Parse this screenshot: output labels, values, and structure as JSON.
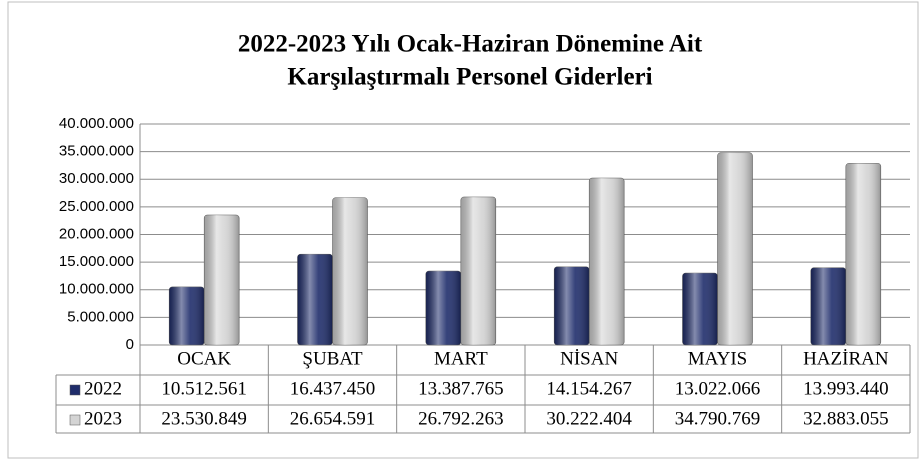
{
  "chart_data": {
    "type": "bar",
    "title": "2022-2023 Yılı Ocak-Haziran Dönemine Ait",
    "subtitle": "Karşılaştırmalı Personel Giderleri",
    "categories": [
      "OCAK",
      "ŞUBAT",
      "MART",
      "NİSAN",
      "MAYIS",
      "HAZİRAN"
    ],
    "series": [
      {
        "name": "2022",
        "color": "#1f2d6b",
        "values": [
          10512561,
          16437450,
          13387765,
          14154267,
          13022066,
          13993440
        ],
        "value_labels": [
          "10.512.561",
          "16.437.450",
          "13.387.765",
          "14.154.267",
          "13.022.066",
          "13.993.440"
        ]
      },
      {
        "name": "2023",
        "color": "#d4d4d4",
        "values": [
          23530849,
          26654591,
          26792263,
          30222404,
          34790769,
          32883055
        ],
        "value_labels": [
          "23.530.849",
          "26.654.591",
          "26.792.263",
          "30.222.404",
          "34.790.769",
          "32.883.055"
        ]
      }
    ],
    "ylim": [
      0,
      40000000
    ],
    "yticks": [
      0,
      {
        "value": 5000000,
        "label": "5.000.000"
      },
      {
        "value": 10000000,
        "label": "10.000.000"
      },
      {
        "value": 15000000,
        "label": "15.000.000"
      },
      {
        "value": 20000000,
        "label": "20.000.000"
      },
      {
        "value": 25000000,
        "label": "25.000.000"
      },
      {
        "value": 30000000,
        "label": "30.000.000"
      },
      {
        "value": 35000000,
        "label": "35.000.000"
      },
      {
        "value": 40000000,
        "label": "40.000.000"
      }
    ],
    "grid": true
  }
}
